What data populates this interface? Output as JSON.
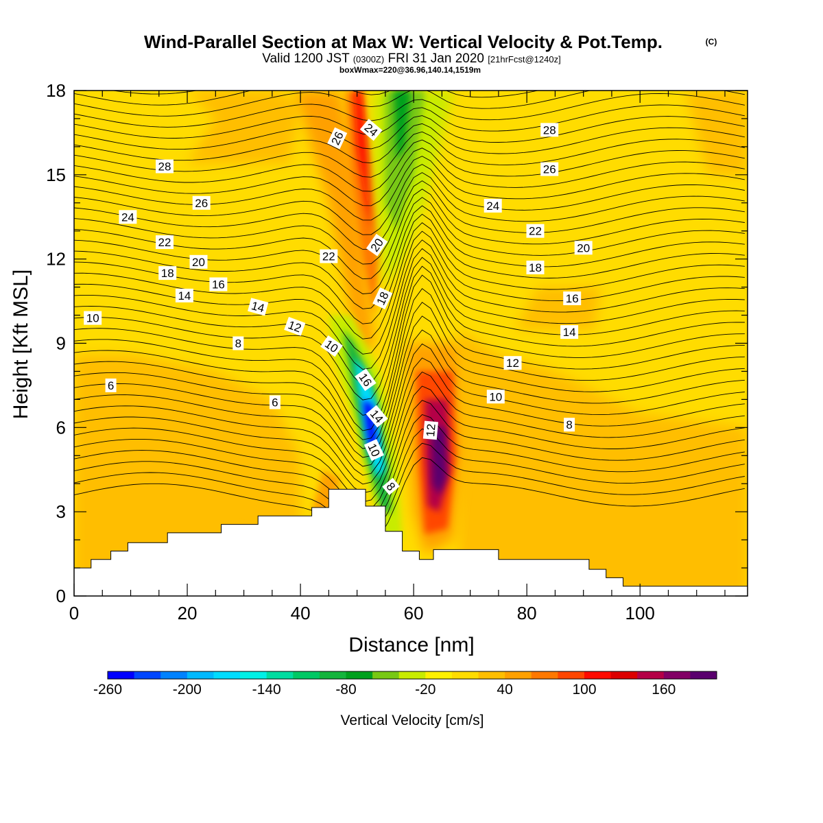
{
  "title": {
    "main": "Wind-Parallel Section at Max W: Vertical Velocity & Pot.Temp.",
    "copyright": "(C)",
    "valid_prefix": "Valid 1200 JST",
    "valid_utc": "(0300Z)",
    "valid_date": "FRI 31 Jan 2020",
    "forecast": "[21hrFcst@1240z]",
    "box": "boxWmax=220@36.96,140.14,1519m"
  },
  "chart_data": {
    "type": "heatmap",
    "xlabel": "Distance [nm]",
    "ylabel": "Height [Kft MSL]",
    "xlim": [
      0,
      119
    ],
    "ylim": [
      0,
      18
    ],
    "x_ticks": [
      "0",
      "20",
      "40",
      "60",
      "80",
      "100"
    ],
    "y_ticks": [
      "0",
      "3",
      "6",
      "9",
      "12",
      "15",
      "18"
    ],
    "colorbar": {
      "label": "Vertical Velocity [cm/s]",
      "tick_labels": [
        "-260",
        "-200",
        "-140",
        "-80",
        "-20",
        "40",
        "100",
        "160"
      ],
      "bins": [
        {
          "lower": -260,
          "color": "#0000ff"
        },
        {
          "lower": -240,
          "color": "#0046ff"
        },
        {
          "lower": -220,
          "color": "#0082ff"
        },
        {
          "lower": -200,
          "color": "#00b9ff"
        },
        {
          "lower": -180,
          "color": "#00dcff"
        },
        {
          "lower": -160,
          "color": "#00f0e6"
        },
        {
          "lower": -140,
          "color": "#00dca0"
        },
        {
          "lower": -120,
          "color": "#00c864"
        },
        {
          "lower": -100,
          "color": "#14b43c"
        },
        {
          "lower": -80,
          "color": "#00a01e"
        },
        {
          "lower": -60,
          "color": "#78c814"
        },
        {
          "lower": -40,
          "color": "#c8ec00"
        },
        {
          "lower": -20,
          "color": "#fff000"
        },
        {
          "lower": 0,
          "color": "#ffdc00"
        },
        {
          "lower": 20,
          "color": "#ffbe00"
        },
        {
          "lower": 40,
          "color": "#ffa000"
        },
        {
          "lower": 60,
          "color": "#ff7800"
        },
        {
          "lower": 80,
          "color": "#ff4600"
        },
        {
          "lower": 100,
          "color": "#ff0a00"
        },
        {
          "lower": 120,
          "color": "#dc0000"
        },
        {
          "lower": 140,
          "color": "#b40046"
        },
        {
          "lower": 160,
          "color": "#820064"
        },
        {
          "lower": 180,
          "color": "#5a006e"
        }
      ]
    },
    "vertical_velocity_features": [
      {
        "feature": "downdraft core",
        "x_nm": 52,
        "height_kft": 5.6,
        "value_cms": -255
      },
      {
        "feature": "updraft core",
        "x_nm": 64,
        "height_kft": 5.0,
        "value_cms": 180
      },
      {
        "feature": "upper updraft band",
        "x_nm": 51,
        "height_kft": 16,
        "value_cms": 90
      },
      {
        "feature": "upper downdraft band",
        "x_nm": 58,
        "height_kft": 15.5,
        "value_cms": -55
      }
    ],
    "terrain": [
      [
        0,
        1.0
      ],
      [
        3,
        1.0
      ],
      [
        3,
        1.3
      ],
      [
        6.5,
        1.3
      ],
      [
        6.5,
        1.6
      ],
      [
        9.5,
        1.6
      ],
      [
        9.5,
        1.9
      ],
      [
        16.5,
        1.9
      ],
      [
        16.5,
        2.25
      ],
      [
        26,
        2.25
      ],
      [
        26,
        2.55
      ],
      [
        32.5,
        2.55
      ],
      [
        32.5,
        2.85
      ],
      [
        42,
        2.85
      ],
      [
        42,
        3.15
      ],
      [
        45,
        3.15
      ],
      [
        45,
        3.8
      ],
      [
        51.5,
        3.8
      ],
      [
        51.5,
        3.2
      ],
      [
        55,
        3.2
      ],
      [
        55,
        2.3
      ],
      [
        58,
        2.3
      ],
      [
        58,
        1.6
      ],
      [
        61,
        1.6
      ],
      [
        61,
        1.3
      ],
      [
        63.5,
        1.3
      ],
      [
        63.5,
        1.65
      ],
      [
        75,
        1.65
      ],
      [
        75,
        1.3
      ],
      [
        91,
        1.3
      ],
      [
        91,
        0.95
      ],
      [
        94,
        0.95
      ],
      [
        94,
        0.65
      ],
      [
        97,
        0.65
      ],
      [
        97,
        0.35
      ],
      [
        119,
        0.35
      ]
    ],
    "potential_temperature_labels": [
      {
        "text": "28",
        "x": 16,
        "y": 15.3,
        "angle": 0
      },
      {
        "text": "26",
        "x": 22.5,
        "y": 14.0,
        "angle": 0
      },
      {
        "text": "24",
        "x": 9.5,
        "y": 13.5,
        "angle": 0
      },
      {
        "text": "22",
        "x": 16,
        "y": 12.6,
        "angle": 0
      },
      {
        "text": "20",
        "x": 22,
        "y": 11.9,
        "angle": 0
      },
      {
        "text": "18",
        "x": 16.5,
        "y": 11.5,
        "angle": 0
      },
      {
        "text": "16",
        "x": 25.5,
        "y": 11.1,
        "angle": 0
      },
      {
        "text": "14",
        "x": 19.5,
        "y": 10.7,
        "angle": 0
      },
      {
        "text": "10",
        "x": 3.3,
        "y": 9.9,
        "angle": 0
      },
      {
        "text": "14",
        "x": 32.5,
        "y": 10.3,
        "angle": 15
      },
      {
        "text": "12",
        "x": 39,
        "y": 9.6,
        "angle": 20
      },
      {
        "text": "8",
        "x": 29,
        "y": 9.0,
        "angle": 0
      },
      {
        "text": "10",
        "x": 45.5,
        "y": 8.9,
        "angle": 35
      },
      {
        "text": "6",
        "x": 6.5,
        "y": 7.5,
        "angle": 0
      },
      {
        "text": "6",
        "x": 35.5,
        "y": 6.9,
        "angle": 0
      },
      {
        "text": "22",
        "x": 45,
        "y": 12.1,
        "angle": 0
      },
      {
        "text": "26",
        "x": 46.5,
        "y": 16.3,
        "angle": -65
      },
      {
        "text": "24",
        "x": 52.5,
        "y": 16.6,
        "angle": 40
      },
      {
        "text": "20",
        "x": 53.5,
        "y": 12.5,
        "angle": -55
      },
      {
        "text": "18",
        "x": 54.5,
        "y": 10.6,
        "angle": -65
      },
      {
        "text": "16",
        "x": 51.5,
        "y": 7.7,
        "angle": 55
      },
      {
        "text": "14",
        "x": 53.5,
        "y": 6.4,
        "angle": 50
      },
      {
        "text": "10",
        "x": 53,
        "y": 5.2,
        "angle": 65
      },
      {
        "text": "8",
        "x": 56,
        "y": 3.9,
        "angle": 50
      },
      {
        "text": "12",
        "x": 63,
        "y": 5.9,
        "angle": -85
      },
      {
        "text": "28",
        "x": 84,
        "y": 16.6,
        "angle": 0
      },
      {
        "text": "26",
        "x": 84,
        "y": 15.2,
        "angle": 0
      },
      {
        "text": "24",
        "x": 74,
        "y": 13.9,
        "angle": 0
      },
      {
        "text": "22",
        "x": 81.5,
        "y": 13.0,
        "angle": 0
      },
      {
        "text": "20",
        "x": 90,
        "y": 12.4,
        "angle": 0
      },
      {
        "text": "18",
        "x": 81.5,
        "y": 11.7,
        "angle": 0
      },
      {
        "text": "16",
        "x": 88,
        "y": 10.6,
        "angle": 0
      },
      {
        "text": "14",
        "x": 87.5,
        "y": 9.4,
        "angle": 0
      },
      {
        "text": "12",
        "x": 77.5,
        "y": 8.3,
        "angle": 0
      },
      {
        "text": "10",
        "x": 74.5,
        "y": 7.1,
        "angle": 0
      },
      {
        "text": "8",
        "x": 87.5,
        "y": 6.1,
        "angle": 0
      }
    ]
  }
}
